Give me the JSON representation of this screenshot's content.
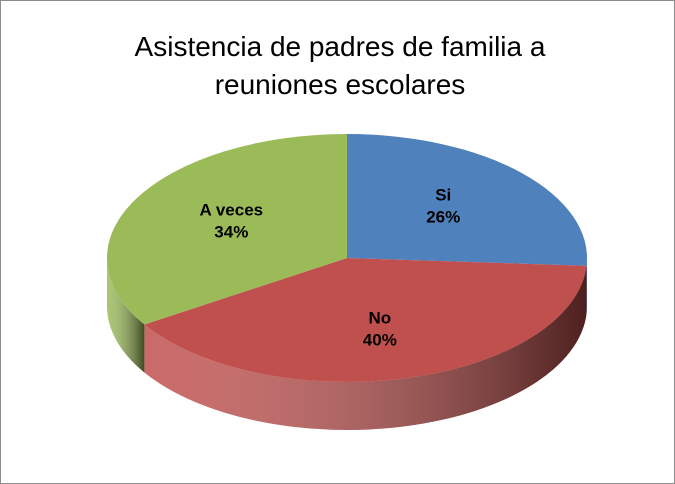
{
  "chart_data": {
    "type": "pie",
    "title": "Asistencia de padres de familia a reuniones escolares",
    "categories": [
      "Si",
      "No",
      "A veces"
    ],
    "values": [
      26,
      40,
      34
    ],
    "value_labels": [
      "26%",
      "40%",
      "34%"
    ],
    "colors": [
      "#4f81bd",
      "#c0504d",
      "#9bbb59"
    ]
  }
}
